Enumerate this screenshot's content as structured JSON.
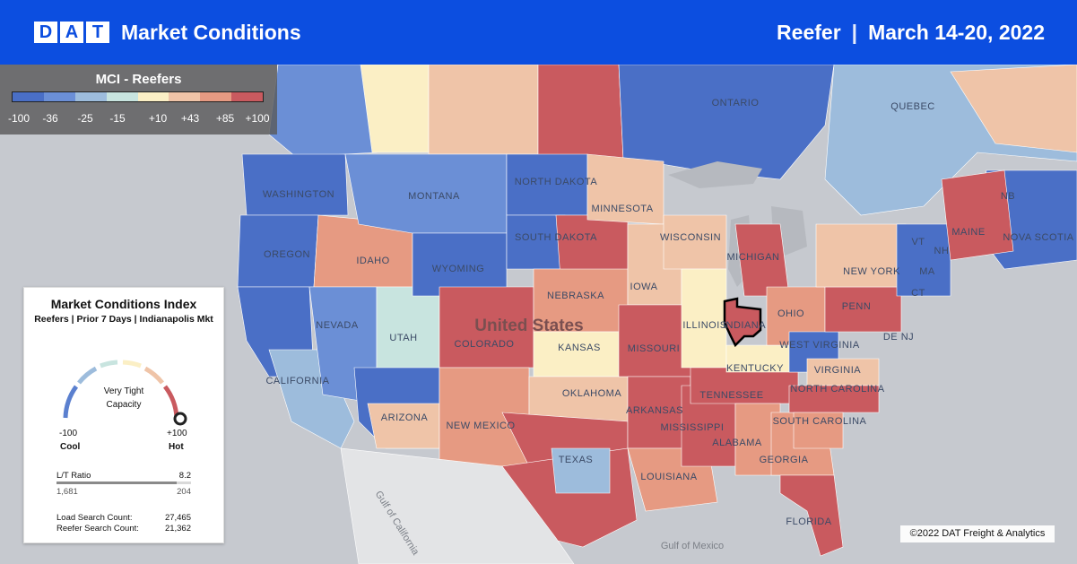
{
  "header": {
    "logo_letters": [
      "D",
      "A",
      "T"
    ],
    "title": "Market Conditions",
    "equipment": "Reefer",
    "separator": "|",
    "dates": "March 14-20, 2022"
  },
  "legend": {
    "title": "MCI - Reefers",
    "ticks": [
      "-100",
      "-36",
      "-25",
      "-15",
      "+10",
      "+43",
      "+85",
      "+100"
    ],
    "colors": [
      "#4a6fc6",
      "#6b8fd6",
      "#9dbcdc",
      "#c8e4df",
      "#fbefc5",
      "#efc4a8",
      "#e69a82",
      "#c95a5f"
    ]
  },
  "panel": {
    "title": "Market Conditions Index",
    "subtitle": "Reefers | Prior 7 Days | Indianapolis Mkt",
    "status_line1": "Very Tight",
    "status_line2": "Capacity",
    "gauge_value": 100,
    "min_label": "-100",
    "max_label": "+100",
    "cool_label": "Cool",
    "hot_label": "Hot",
    "lt_ratio_label": "L/T Ratio",
    "lt_ratio_value": "8.2",
    "lt_ratio_fill": 0.89,
    "lt_left": "1,681",
    "lt_right": "204",
    "load_search_label": "Load Search Count:",
    "load_search_value": "27,465",
    "reefer_search_label": "Reefer Search Count:",
    "reefer_search_value": "21,362"
  },
  "map": {
    "country_label": "United States",
    "labels": [
      "ONTARIO",
      "QUEBEC",
      "WASHINGTON",
      "MONTANA",
      "NORTH DAKOTA",
      "MINNESOTA",
      "SOUTH DAKOTA",
      "WISCONSIN",
      "MICHIGAN",
      "OREGON",
      "IDAHO",
      "WYOMING",
      "NEBRASKA",
      "IOWA",
      "NEW YORK",
      "MAINE",
      "NB",
      "NOVA SCOTIA",
      "NEVADA",
      "UTAH",
      "COLORADO",
      "KANSAS",
      "MISSOURI",
      "ILLINOIS",
      "INDIANA",
      "OHIO",
      "PENN",
      "DE NJ",
      "VT",
      "NH",
      "MA",
      "CT",
      "CALIFORNIA",
      "ARIZONA",
      "NEW MEXICO",
      "OKLAHOMA",
      "ARKANSAS",
      "TENNESSEE",
      "KENTUCKY",
      "WEST VIRGINIA",
      "VIRGINIA",
      "NORTH CAROLINA",
      "SOUTH CAROLINA",
      "MISSISSIPPI",
      "ALABAMA",
      "GEORGIA",
      "LOUISIANA",
      "TEXAS",
      "FLORIDA"
    ],
    "water_labels": [
      "Gulf of California",
      "Gulf of Mexico"
    ]
  },
  "credit": "©2022 DAT Freight & Analytics"
}
